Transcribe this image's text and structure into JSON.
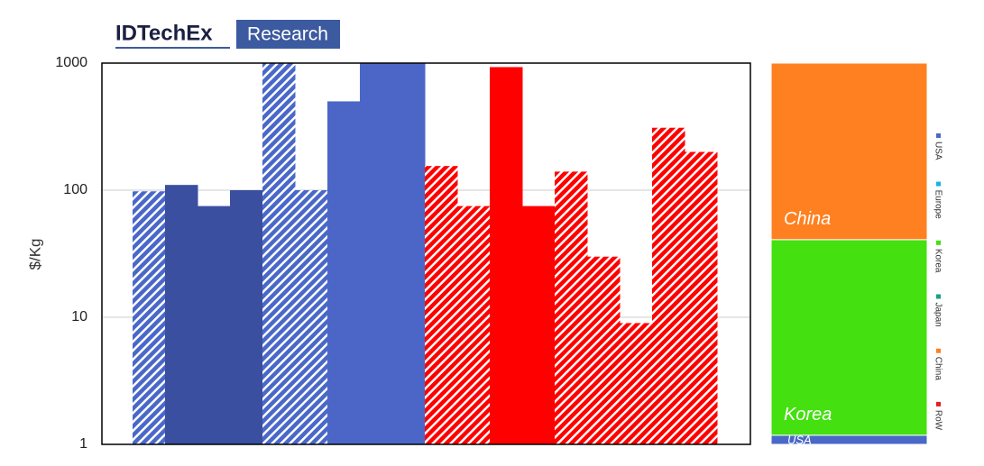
{
  "header": {
    "brand": "IDTechEx",
    "badge": "Research"
  },
  "chart_data": [
    {
      "type": "bar",
      "ylabel": "$/Kg",
      "log_scale": true,
      "grid": true,
      "ylim": [
        1,
        1000
      ],
      "yticks": [
        1,
        10,
        100,
        1000
      ],
      "values": [
        98,
        110,
        75,
        100,
        1000,
        100,
        500,
        1000,
        1000,
        155,
        75,
        930,
        75,
        140,
        30,
        9,
        310,
        200
      ],
      "colors": [
        "#4a68c8",
        "#3a4fa0",
        "#3a4fa0",
        "#3a4fa0",
        "#4a68c8",
        "#4a68c8",
        "#4c66c8",
        "#4c66c8",
        "#4c66c8",
        "#ff0000",
        "#ff0000",
        "#ff0000",
        "#ff0000",
        "#ff0000",
        "#ff0000",
        "#ff0000",
        "#ff0000",
        "#ff0000"
      ],
      "hatched": [
        true,
        false,
        false,
        false,
        true,
        true,
        false,
        false,
        false,
        true,
        true,
        false,
        false,
        true,
        true,
        true,
        true,
        true
      ]
    },
    {
      "type": "stacked_column",
      "legend": "right",
      "series": [
        {
          "name": "USA",
          "color": "#4a68c8",
          "values": [
            2.4
          ],
          "labeled": true
        },
        {
          "name": "Europe",
          "color": "#17b3e6",
          "values": [
            0
          ],
          "labeled": false
        },
        {
          "name": "Korea",
          "color": "#44e010",
          "values": [
            51.3
          ],
          "labeled": true
        },
        {
          "name": "Japan",
          "color": "#1aa083",
          "values": [
            0
          ],
          "labeled": false
        },
        {
          "name": "China",
          "color": "#ff8020",
          "values": [
            46.3
          ],
          "labeled": true
        },
        {
          "name": "RoW",
          "color": "#e02020",
          "values": [
            0
          ],
          "labeled": false
        }
      ]
    }
  ]
}
